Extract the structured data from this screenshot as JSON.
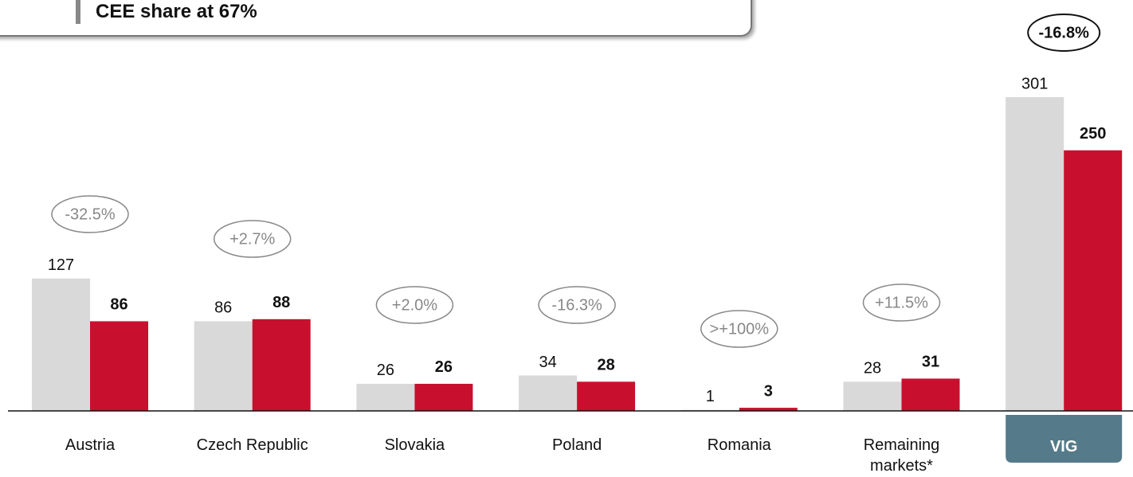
{
  "chart_data": {
    "type": "bar",
    "title": "CEE share at 67%",
    "categories": [
      "Austria",
      "Czech Republic",
      "Slovakia",
      "Poland",
      "Romania",
      "Remaining markets*",
      "VIG"
    ],
    "series": [
      {
        "color": "#d9d9d9",
        "values": [
          127,
          86,
          26,
          34,
          1,
          28,
          301
        ]
      },
      {
        "color": "#c8102e",
        "values": [
          86,
          88,
          26,
          28,
          3,
          31,
          250
        ]
      }
    ],
    "changes": [
      "-32.5%",
      "+2.7%",
      "+2.0%",
      "-16.3%",
      ">+100%",
      "+11.5%",
      "-16.8%"
    ],
    "ylim": [
      0,
      300
    ]
  }
}
